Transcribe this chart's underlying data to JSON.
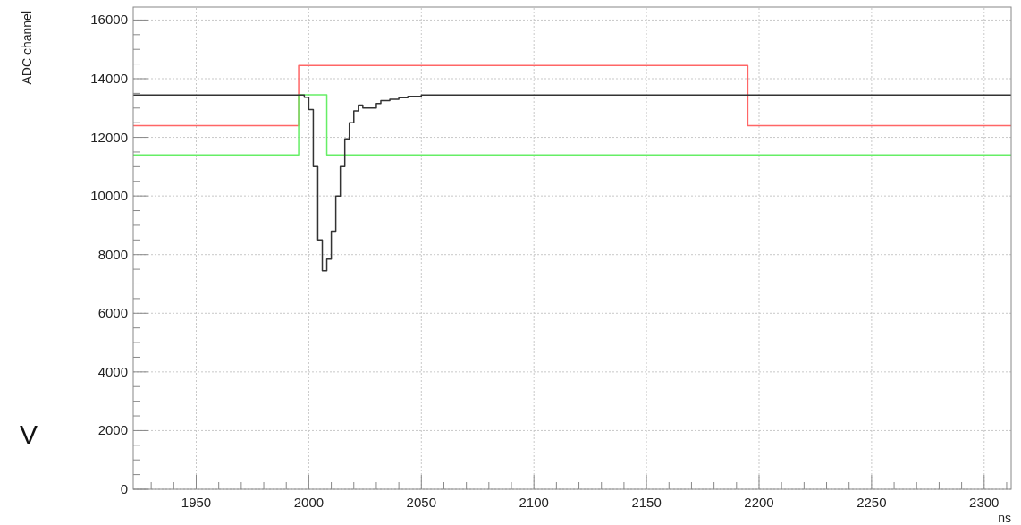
{
  "chart_data": {
    "type": "step",
    "xlabel": "ns",
    "ylabel": "ADC channel",
    "annotations": [
      "V"
    ],
    "xlim": [
      1922,
      2312
    ],
    "ylim": [
      0,
      16440
    ],
    "xticks": [
      {
        "value": 1930,
        "label": null
      },
      {
        "value": 1940,
        "label": null
      },
      1950,
      {
        "value": 1960,
        "label": null
      },
      {
        "value": 1970,
        "label": null
      },
      {
        "value": 1980,
        "label": null
      },
      {
        "value": 1990,
        "label": null
      },
      2000,
      {
        "value": 2010,
        "label": null
      },
      {
        "value": 2020,
        "label": null
      },
      {
        "value": 2030,
        "label": null
      },
      {
        "value": 2040,
        "label": null
      },
      2050,
      {
        "value": 2060,
        "label": null
      },
      {
        "value": 2070,
        "label": null
      },
      {
        "value": 2080,
        "label": null
      },
      {
        "value": 2090,
        "label": null
      },
      2100,
      {
        "value": 2110,
        "label": null
      },
      {
        "value": 2120,
        "label": null
      },
      {
        "value": 2130,
        "label": null
      },
      {
        "value": 2140,
        "label": null
      },
      2150,
      {
        "value": 2160,
        "label": null
      },
      {
        "value": 2170,
        "label": null
      },
      {
        "value": 2180,
        "label": null
      },
      {
        "value": 2190,
        "label": null
      },
      2200,
      {
        "value": 2210,
        "label": null
      },
      {
        "value": 2220,
        "label": null
      },
      {
        "value": 2230,
        "label": null
      },
      {
        "value": 2240,
        "label": null
      },
      2250,
      {
        "value": 2260,
        "label": null
      },
      {
        "value": 2270,
        "label": null
      },
      {
        "value": 2280,
        "label": null
      },
      {
        "value": 2290,
        "label": null
      },
      2300,
      {
        "value": 2310,
        "label": null
      }
    ],
    "yticks": [
      0,
      {
        "value": 500,
        "label": null
      },
      {
        "value": 1000,
        "label": null
      },
      {
        "value": 1500,
        "label": null
      },
      2000,
      {
        "value": 2500,
        "label": null
      },
      {
        "value": 3000,
        "label": null
      },
      {
        "value": 3500,
        "label": null
      },
      4000,
      {
        "value": 4500,
        "label": null
      },
      {
        "value": 5000,
        "label": null
      },
      {
        "value": 5500,
        "label": null
      },
      6000,
      {
        "value": 6500,
        "label": null
      },
      {
        "value": 7000,
        "label": null
      },
      {
        "value": 7500,
        "label": null
      },
      8000,
      {
        "value": 8500,
        "label": null
      },
      {
        "value": 9000,
        "label": null
      },
      {
        "value": 9500,
        "label": null
      },
      10000,
      {
        "value": 10500,
        "label": null
      },
      {
        "value": 11000,
        "label": null
      },
      {
        "value": 11500,
        "label": null
      },
      12000,
      {
        "value": 12500,
        "label": null
      },
      {
        "value": 13000,
        "label": null
      },
      {
        "value": 13500,
        "label": null
      },
      14000,
      {
        "value": 14500,
        "label": null
      },
      {
        "value": 15000,
        "label": null
      },
      {
        "value": 15500,
        "label": null
      },
      16000
    ],
    "grid": true,
    "series": [
      {
        "color": "#ff6666",
        "x": [
          1922,
          1995.5,
          2195,
          2312
        ],
        "values": [
          12400,
          14450,
          12400,
          12400
        ]
      },
      {
        "color": "#66ee66",
        "x": [
          1922,
          1995.5,
          2008,
          2312
        ],
        "values": [
          11400,
          13450,
          11400,
          11400
        ]
      },
      {
        "color": "#333333",
        "x": [
          1922,
          1998,
          2000,
          2002,
          2004,
          2006,
          2008,
          2010,
          2012,
          2014,
          2016,
          2018,
          2020,
          2022,
          2024,
          2030,
          2032,
          2036,
          2040,
          2044,
          2050,
          2312
        ],
        "values": [
          13440,
          13370,
          12950,
          11000,
          8500,
          7450,
          7850,
          8800,
          10000,
          11000,
          11950,
          12500,
          12900,
          13100,
          13000,
          13150,
          13250,
          13300,
          13350,
          13400,
          13440,
          13440
        ]
      }
    ]
  }
}
